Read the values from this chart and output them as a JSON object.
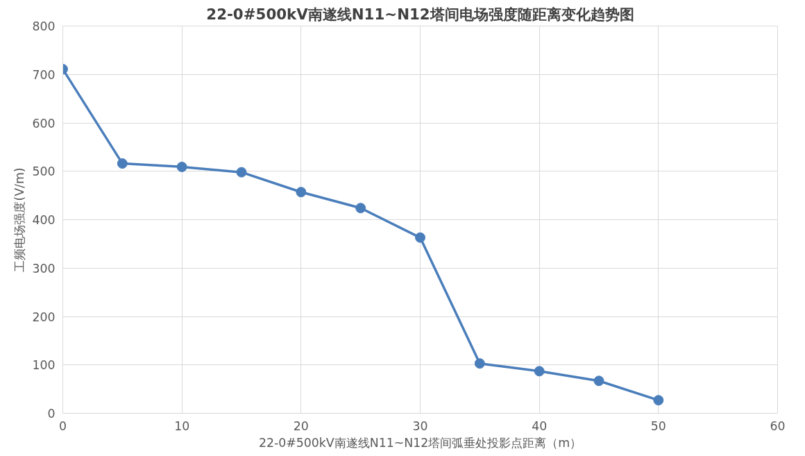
{
  "chart_data": {
    "type": "line",
    "title": "22-0#500kV南遂线N11~N12塔间电场强度随距离变化趋势图",
    "xlabel": "22-0#500kV南遂线N11~N12塔间弧垂处投影点距离（m）",
    "ylabel": "工频电场强度(V/m)",
    "x": [
      0,
      5,
      10,
      15,
      20,
      25,
      30,
      35,
      40,
      45,
      50
    ],
    "series": [
      {
        "color": "#4a7ebb",
        "values": [
          711,
          516,
          509,
          498,
          457,
          424,
          363,
          103,
          87,
          67,
          27
        ]
      }
    ],
    "xlim": [
      0,
      60
    ],
    "xticks": [
      0,
      10,
      20,
      30,
      40,
      50,
      60
    ],
    "ylim": [
      0,
      800
    ],
    "yticks": [
      0,
      100,
      200,
      300,
      400,
      500,
      600,
      700,
      800
    ],
    "grid": true,
    "marker": "circle",
    "line_style": "solid"
  }
}
